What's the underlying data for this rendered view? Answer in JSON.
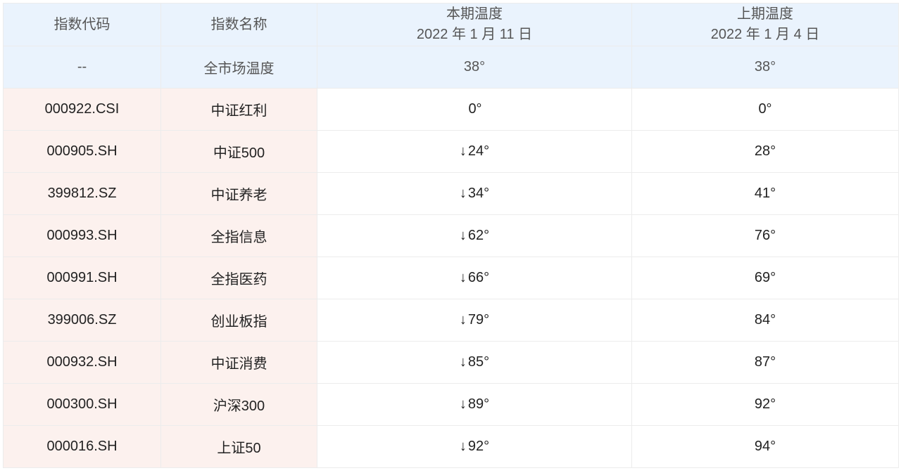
{
  "header": {
    "code": "指数代码",
    "name": "指数名称",
    "current": {
      "label": "本期温度",
      "date": "2022 年 1 月 11 日"
    },
    "previous": {
      "label": "上期温度",
      "date": "2022 年 1 月 4 日"
    }
  },
  "market": {
    "code": "--",
    "name": "全市场温度",
    "current": "38°",
    "previous": "38°"
  },
  "rows": [
    {
      "code": "000922.CSI",
      "name": "中证红利",
      "trend": "",
      "current": "0°",
      "previous": "0°"
    },
    {
      "code": "000905.SH",
      "name": "中证500",
      "trend": "↓",
      "current": "24°",
      "previous": "28°"
    },
    {
      "code": "399812.SZ",
      "name": "中证养老",
      "trend": "↓",
      "current": "34°",
      "previous": "41°"
    },
    {
      "code": "000993.SH",
      "name": "全指信息",
      "trend": "↓",
      "current": "62°",
      "previous": "76°"
    },
    {
      "code": "000991.SH",
      "name": "全指医药",
      "trend": "↓",
      "current": "66°",
      "previous": "69°"
    },
    {
      "code": "399006.SZ",
      "name": "创业板指",
      "trend": "↓",
      "current": "79°",
      "previous": "84°"
    },
    {
      "code": "000932.SH",
      "name": "中证消费",
      "trend": "↓",
      "current": "85°",
      "previous": "87°"
    },
    {
      "code": "000300.SH",
      "name": "沪深300",
      "trend": "↓",
      "current": "89°",
      "previous": "92°"
    },
    {
      "code": "000016.SH",
      "name": "上证50",
      "trend": "↓",
      "current": "92°",
      "previous": "94°"
    }
  ],
  "colors": {
    "header_bg": "#eaf3fd",
    "index_col_bg": "#fcf1ee"
  }
}
